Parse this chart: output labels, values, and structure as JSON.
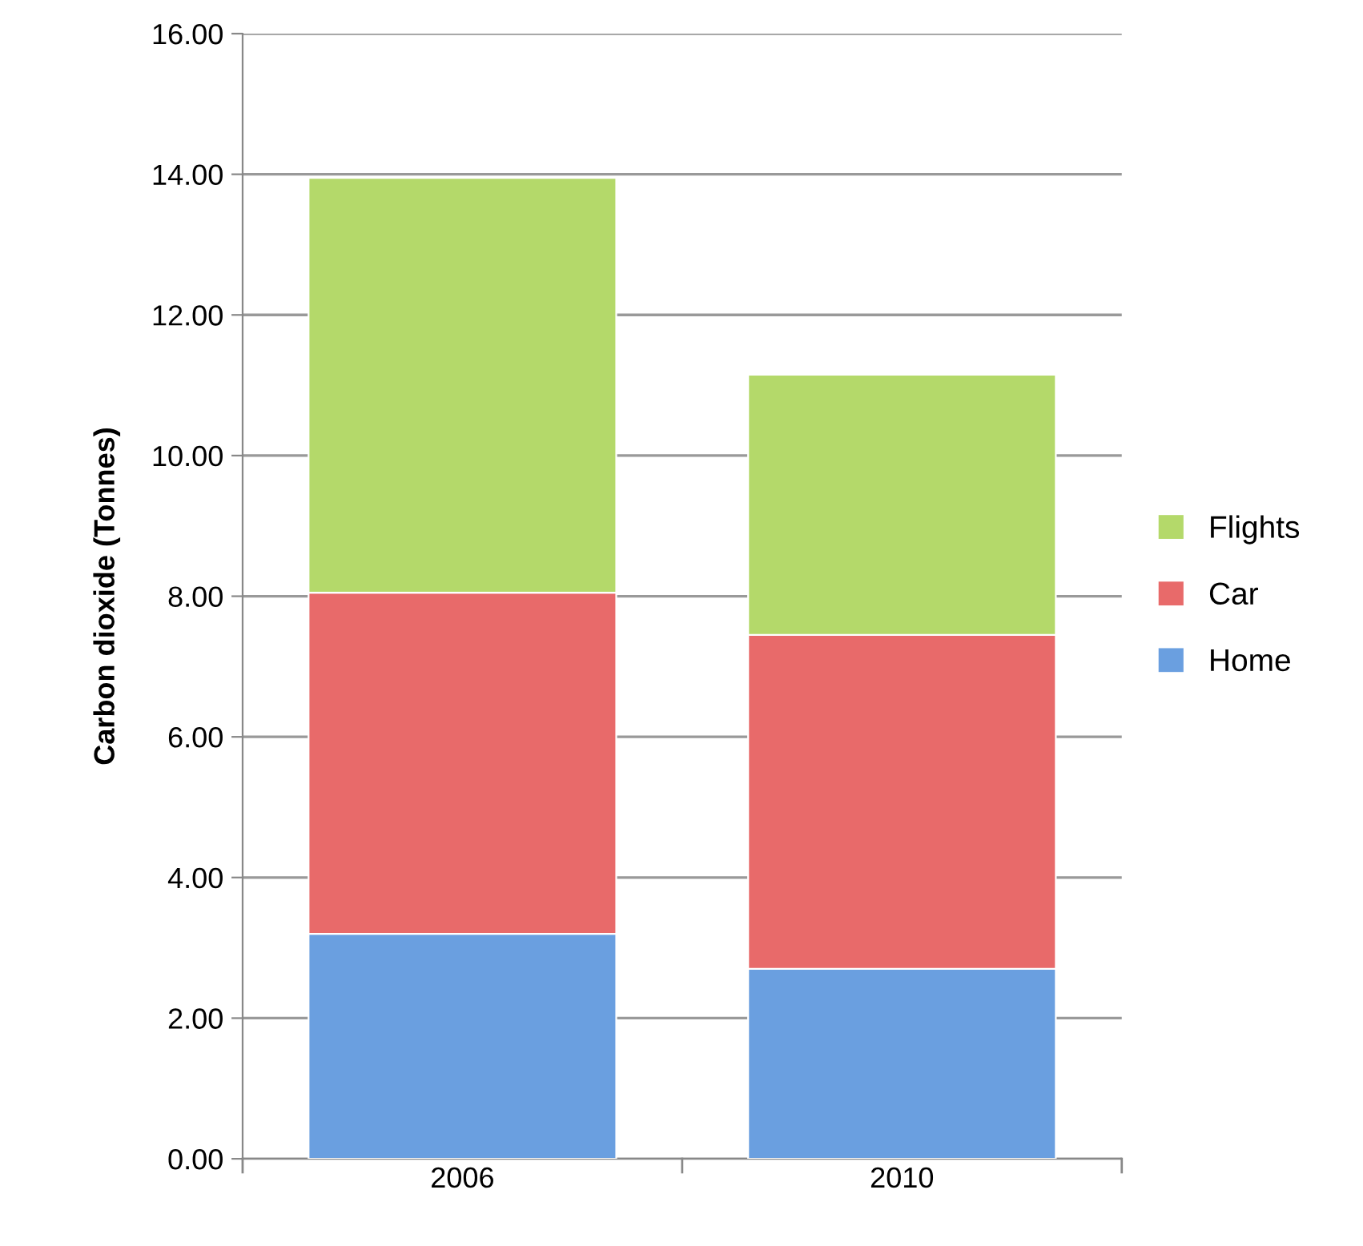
{
  "chart_data": {
    "type": "bar",
    "stacked": true,
    "ylabel": "Carbon dioxide (Tonnes)",
    "categories": [
      "2006",
      "2010"
    ],
    "series": [
      {
        "name": "Home",
        "color": "#6a9fe0",
        "values": [
          3.2,
          2.7
        ]
      },
      {
        "name": "Car",
        "color": "#e86a6a",
        "values": [
          4.85,
          4.75
        ]
      },
      {
        "name": "Flights",
        "color": "#b4d96a",
        "values": [
          5.9,
          3.7
        ]
      }
    ],
    "ylim": [
      0,
      16
    ],
    "yticks": [
      {
        "value": 0,
        "label": "0.00"
      },
      {
        "value": 2,
        "label": "2.00"
      },
      {
        "value": 4,
        "label": "4.00"
      },
      {
        "value": 6,
        "label": "6.00"
      },
      {
        "value": 8,
        "label": "8.00"
      },
      {
        "value": 10,
        "label": "10.00"
      },
      {
        "value": 12,
        "label": "12.00"
      },
      {
        "value": 14,
        "label": "14.00"
      },
      {
        "value": 16,
        "label": "16.00"
      }
    ],
    "grid": "y",
    "legend": "right"
  }
}
